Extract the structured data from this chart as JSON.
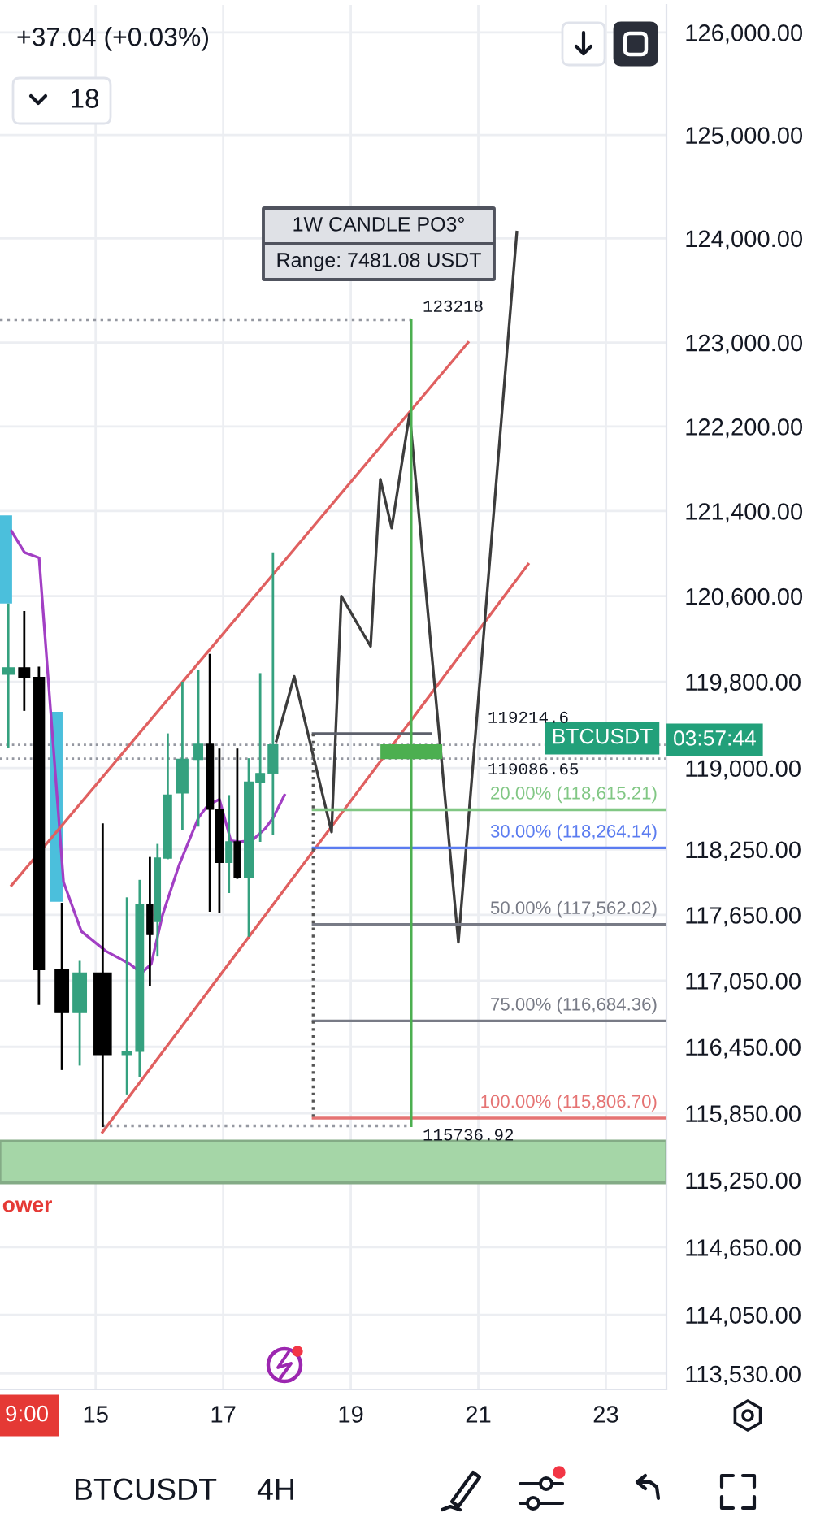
{
  "chart_data": {
    "type": "candlestick",
    "x": [
      13.63,
      13.88,
      14.11,
      14.47,
      14.75,
      15.11,
      15.49,
      15.69,
      15.85,
      15.97,
      16.13,
      16.36,
      16.61,
      16.79,
      16.94,
      17.09,
      17.22,
      17.4,
      17.58,
      17.78,
      19.95
    ],
    "ohlc": [
      [
        119870,
        120520,
        119200,
        119930
      ],
      [
        119930,
        120450,
        119540,
        119840
      ],
      [
        119840,
        119930,
        116840,
        117150
      ],
      [
        117150,
        117750,
        116250,
        116760
      ],
      [
        116760,
        117220,
        116290,
        117120
      ],
      [
        117120,
        118480,
        115736.92,
        116380
      ],
      [
        116380,
        117800,
        116030,
        116410
      ],
      [
        116410,
        117960,
        116190,
        117740
      ],
      [
        117740,
        118170,
        117010,
        117470
      ],
      [
        117590,
        118290,
        117280,
        118170
      ],
      [
        118170,
        119310,
        118170,
        118750
      ],
      [
        118770,
        119790,
        118440,
        119080
      ],
      [
        119080,
        119900,
        118470,
        119220
      ],
      [
        119220,
        120050,
        117690,
        118620
      ],
      [
        118620,
        119170,
        117680,
        118130
      ],
      [
        118130,
        118740,
        117860,
        118320
      ],
      [
        118320,
        119170,
        117990,
        117990
      ],
      [
        117990,
        119080,
        117460,
        118870
      ],
      [
        118870,
        119870,
        118330,
        118950
      ],
      [
        118950,
        121000,
        118390,
        119214.6
      ],
      [
        119086.65,
        123218,
        115736.92,
        119214.6
      ]
    ],
    "colors": [
      "#35a17f",
      "#000000",
      "#000000",
      "#000000",
      "#35a17f",
      "#000000",
      "#35a17f",
      "#35a17f",
      "#000000",
      "#35a17f",
      "#35a17f",
      "#35a17f",
      "#35a17f",
      "#000000",
      "#000000",
      "#35a17f",
      "#000000",
      "#35a17f",
      "#35a17f",
      "#35a17f",
      "#4caf50"
    ],
    "series": [
      {
        "type": "bar",
        "color": "#4bbfdc",
        "x": [
          13.59,
          14.381
        ],
        "base": [
          120530,
          117770
        ],
        "values": [
          830,
          1750
        ]
      },
      {
        "type": "line",
        "color": "#a23fc4",
        "x": [
          13.68,
          13.884,
          14.113,
          14.292,
          14.496,
          14.776,
          15.158,
          15.54,
          15.718,
          15.871,
          16.049,
          16.304,
          16.61,
          16.763,
          16.941,
          17.12,
          17.247,
          17.451,
          17.655,
          17.782,
          17.961
        ],
        "values": [
          121210,
          121010,
          120960,
          119540,
          117950,
          117500,
          117320,
          117200,
          117120,
          117200,
          117650,
          118100,
          118540,
          118660,
          118710,
          118330,
          118320,
          118330,
          118440,
          118540,
          118750
        ]
      },
      {
        "type": "line",
        "color": "#e06060",
        "x": [
          13.68,
          20.839
        ],
        "values": [
          117920,
          123000
        ]
      },
      {
        "type": "line",
        "color": "#e06060",
        "x": [
          15.107,
          21.782
        ],
        "values": [
          115680,
          120900
        ]
      },
      {
        "type": "line",
        "color": "#3c3c3c",
        "x": [
          17.833,
          18.113,
          18.699,
          18.852,
          19.311,
          19.464,
          19.642,
          19.922,
          20.687,
          21.604
        ],
        "values": [
          119250,
          119850,
          118410,
          120600,
          120130,
          121700,
          121240,
          122320,
          117400,
          124060
        ]
      },
      {
        "type": "line",
        "color": "#5d606b",
        "x": [
          18.41,
          20.25
        ],
        "values": [
          119317.34,
          119317.34
        ]
      },
      {
        "type": "line",
        "name": "20.00% (118,615.21)",
        "color": "#81c784",
        "x": [
          18.41,
          23.95
        ],
        "values": [
          118615.21,
          118615.21
        ]
      },
      {
        "type": "line",
        "name": "30.00% (118,264.14)",
        "color": "#5b7cf0",
        "x": [
          18.41,
          23.95
        ],
        "values": [
          118264.14,
          118264.14
        ]
      },
      {
        "type": "line",
        "name": "50.00% (117,562.02)",
        "color": "#787b86",
        "x": [
          18.41,
          23.95
        ],
        "values": [
          117562.02,
          117562.02
        ]
      },
      {
        "type": "line",
        "name": "75.00% (116,684.36)",
        "color": "#787b86",
        "x": [
          18.41,
          23.95
        ],
        "values": [
          116684.36,
          116684.36
        ]
      },
      {
        "type": "line",
        "name": "100.00% (115,806.70)",
        "color": "#e57373",
        "x": [
          18.41,
          23.95
        ],
        "values": [
          115806.7,
          115806.7
        ]
      },
      {
        "type": "line",
        "color": "#555555",
        "line_style": "dotted",
        "x": [
          18.41,
          18.41
        ],
        "values": [
          119317.34,
          115806.7
        ]
      },
      {
        "type": "line",
        "color": "#9598a1",
        "line_style": "dotted",
        "x": [
          13.5,
          19.95
        ],
        "values": [
          123218,
          123218
        ]
      },
      {
        "type": "line",
        "color": "#9598a1",
        "line_style": "dotted",
        "x": [
          15.107,
          19.95
        ],
        "values": [
          115736.92,
          115736.92
        ]
      }
    ],
    "ref_lines": [
      {
        "axis": "y",
        "value": 119214.6,
        "label": "BTCUSDT",
        "color": "#9598a1",
        "line_style": "dotted"
      },
      {
        "axis": "y",
        "value": 119086.65,
        "color": "#9598a1",
        "line_style": "dotted"
      }
    ],
    "bands": [
      {
        "axis": "y",
        "from": 115225,
        "to": 115600,
        "color": "#a5d6a7",
        "label": "ower"
      }
    ],
    "annotations": [
      "+37.04 (+0.03%)",
      "18",
      "1W CANDLE PO3°",
      "Range: 7481.08 USDT",
      "119214.6",
      "119086.65",
      "03:57:44",
      "9:00",
      "BTCUSDT",
      "4H",
      {
        "text": "123218",
        "x": 19.95,
        "y": 123218
      },
      {
        "text": "115736.92",
        "x": 19.95,
        "y": 115736.92
      }
    ],
    "xlim": [
      13.5,
      23.95
    ],
    "ylim": [
      113390,
      126270
    ],
    "xticks": [
      15,
      17,
      19,
      21,
      23
    ],
    "yticks": [
      {
        "value": 126000,
        "label": "126,000.00"
      },
      {
        "value": 125000,
        "label": "125,000.00"
      },
      {
        "value": 124000,
        "label": "124,000.00"
      },
      {
        "value": 123000,
        "label": "123,000.00"
      },
      {
        "value": 122200,
        "label": "122,200.00"
      },
      {
        "value": 121400,
        "label": "121,400.00"
      },
      {
        "value": 120600,
        "label": "120,600.00"
      },
      {
        "value": 119800,
        "label": "119,800.00"
      },
      {
        "value": 119000,
        "label": "119,000.00"
      },
      {
        "value": 118250,
        "label": "118,250.00"
      },
      {
        "value": 117650,
        "label": "117,650.00"
      },
      {
        "value": 117050,
        "label": "117,050.00"
      },
      {
        "value": 116450,
        "label": "116,450.00"
      },
      {
        "value": 115850,
        "label": "115,850.00"
      },
      {
        "value": 115250,
        "label": "115,250.00"
      },
      {
        "value": 114650,
        "label": "114,650.00"
      },
      {
        "value": 114050,
        "label": "114,050.00"
      },
      {
        "value": 113530,
        "label": "113,530.00"
      }
    ],
    "log": true,
    "grid": true
  }
}
